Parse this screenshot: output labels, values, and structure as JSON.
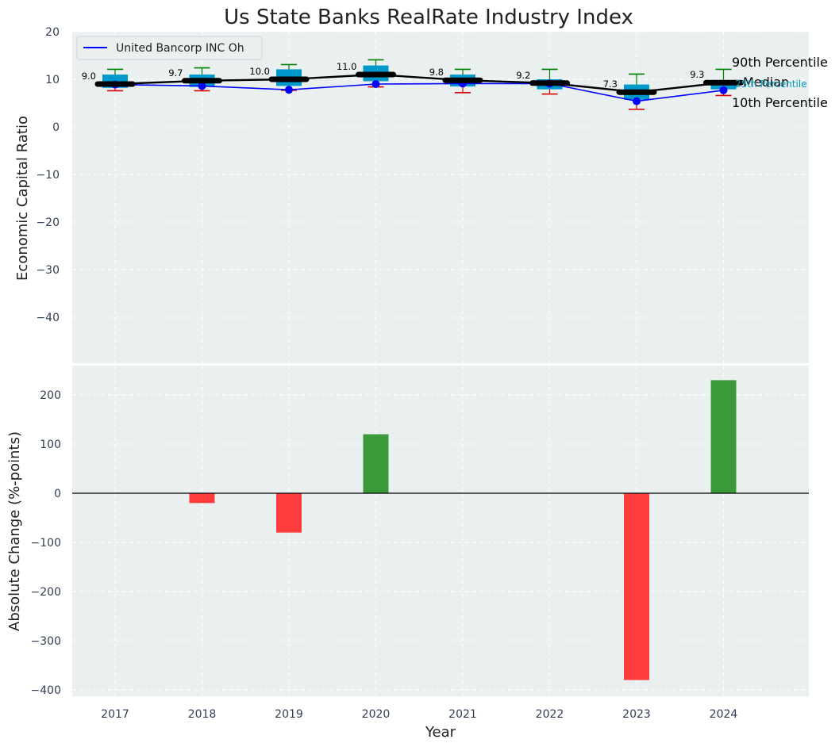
{
  "chart_data": {
    "title": "Us State Banks RealRate Industry Index",
    "xlabel": "Year",
    "years": [
      "2017",
      "2018",
      "2019",
      "2020",
      "2021",
      "2022",
      "2023",
      "2024"
    ],
    "top": {
      "type": "box+line",
      "ylabel": "Economic Capital Ratio",
      "ylim": [
        -50,
        20
      ],
      "yticks": [
        20,
        10,
        0,
        -10,
        -20,
        -30,
        -40
      ],
      "legend": {
        "label": "United Bancorp INC Oh",
        "position": "top-left",
        "color": "#0000ff"
      },
      "company_values": [
        8.9,
        8.6,
        7.8,
        9.0,
        9.1,
        9.1,
        5.4,
        7.7
      ],
      "median": [
        9.0,
        9.7,
        10.0,
        11.0,
        9.8,
        9.2,
        7.3,
        9.3
      ],
      "median_labels": [
        "9.0",
        "9.7",
        "10.0",
        "11.0",
        "9.8",
        "9.2",
        "7.3",
        "9.3"
      ],
      "p10": [
        7.6,
        7.6,
        7.7,
        8.4,
        7.2,
        6.9,
        3.7,
        6.6
      ],
      "p25": [
        8.2,
        8.4,
        8.6,
        9.6,
        8.5,
        7.9,
        5.7,
        7.9
      ],
      "p75": [
        11.0,
        11.0,
        12.1,
        12.9,
        11.0,
        10.0,
        8.9,
        9.6
      ],
      "p90": [
        12.1,
        12.4,
        13.1,
        14.1,
        12.1,
        12.1,
        11.1,
        12.1
      ],
      "annotations": [
        "90th Percentile",
        "Median",
        "25th Percentile",
        "10th Percentile"
      ]
    },
    "bottom": {
      "type": "bar",
      "ylabel": "Absolute Change (%-points)",
      "ylim": [
        -410,
        270
      ],
      "yticks": [
        200,
        100,
        0,
        -100,
        -200,
        -300,
        -400
      ],
      "values": [
        0,
        -20,
        -80,
        120,
        0,
        0,
        -380,
        230
      ]
    }
  },
  "colors": {
    "panel_bg": "#eaeff0",
    "box_fill": "#0099cc",
    "company_line": "#0000ff",
    "median_line": "#000000",
    "p90_whisker": "#008000",
    "p10_whisker": "#dd0000",
    "bar_positive": "#3a9a3a",
    "bar_negative": "#ff3c3c",
    "annotation_25th": "#0099bb"
  }
}
